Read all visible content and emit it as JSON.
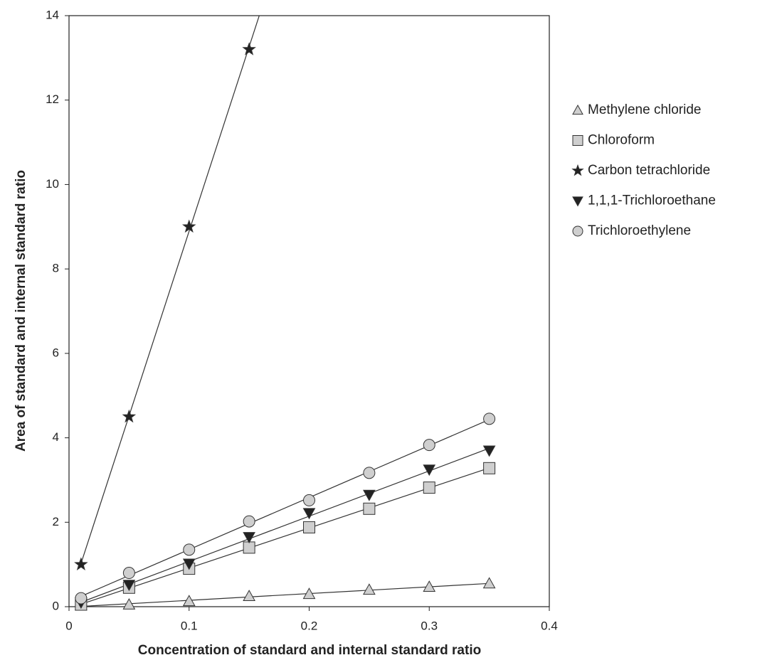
{
  "chart_data": {
    "type": "scatter",
    "xlabel": "Concentration of standard and internal standard ratio",
    "ylabel": "Area of standard and internal standard ratio",
    "x": [
      0.01,
      0.05,
      0.1,
      0.15,
      0.2,
      0.25,
      0.3,
      0.35
    ],
    "xlim": [
      0,
      0.4
    ],
    "xticks": [
      0,
      0.1,
      0.2,
      0.3,
      0.4
    ],
    "ylim": [
      0,
      14
    ],
    "yticks": [
      0,
      2,
      4,
      6,
      8,
      10,
      12,
      14
    ],
    "trendline": "linear",
    "legend": "right",
    "series": [
      {
        "name": "Methylene chloride",
        "marker": "triangle",
        "color": "#cfcfcf",
        "values": [
          0.03,
          0.05,
          0.13,
          0.25,
          0.3,
          0.4,
          0.47,
          0.55
        ]
      },
      {
        "name": "Chloroform",
        "marker": "square",
        "color": "#cfcfcf",
        "values": [
          0.05,
          0.45,
          0.9,
          1.4,
          1.88,
          2.32,
          2.82,
          3.28
        ]
      },
      {
        "name": "Carbon tetrachloride",
        "marker": "star",
        "color": "#222222",
        "values": [
          1.0,
          4.5,
          9.0,
          13.2,
          null,
          null,
          null,
          null
        ]
      },
      {
        "name": "1,1,1-Trichloroethane",
        "marker": "triangle-down",
        "color": "#222222",
        "values": [
          0.1,
          0.52,
          1.02,
          1.65,
          2.22,
          2.65,
          3.25,
          3.7
        ]
      },
      {
        "name": "Trichloroethylene",
        "marker": "circle",
        "color": "#cfcfcf",
        "values": [
          0.2,
          0.8,
          1.35,
          2.02,
          2.52,
          3.17,
          3.83,
          4.45
        ]
      }
    ]
  }
}
